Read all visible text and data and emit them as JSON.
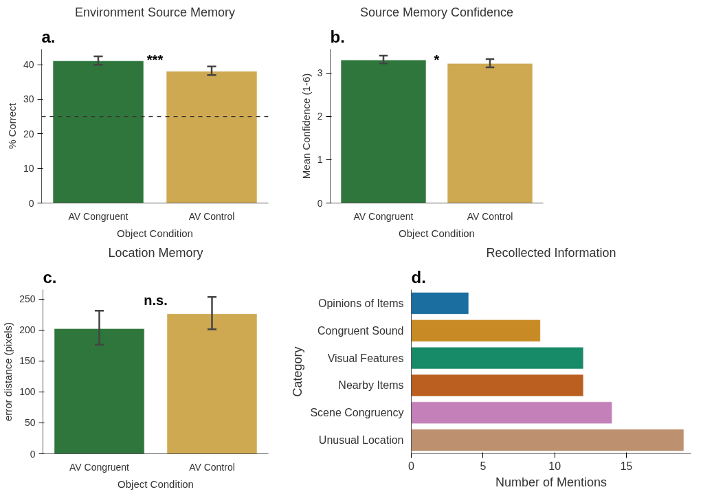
{
  "chart_data": [
    {
      "type": "bar",
      "title": "Environment Source Memory",
      "xlabel": "Object Condition",
      "ylabel": "% Correct",
      "categories": [
        "AV Congruent",
        "AV Control"
      ],
      "values": [
        41.1,
        38.1
      ],
      "colors": [
        "#2e763b",
        "#cfa952"
      ],
      "errors": [
        [
          40.0,
          42.4
        ],
        [
          37.0,
          39.5
        ]
      ],
      "ylim": [
        0,
        44.5
      ],
      "yticks": [
        0,
        10,
        20,
        30,
        40
      ],
      "grid": false,
      "ref_lines": [
        {
          "axis": "y",
          "value": 25,
          "line_style": "dashed",
          "color": "#333333"
        }
      ],
      "annotations": [
        "a.",
        "***"
      ]
    },
    {
      "type": "bar",
      "title": "Source Memory Confidence",
      "xlabel": "Object Condition",
      "ylabel": "Mean Confidence (1-6)",
      "categories": [
        "AV Congruent",
        "AV Control"
      ],
      "values": [
        3.3,
        3.22
      ],
      "colors": [
        "#2e763b",
        "#cfa952"
      ],
      "errors": [
        [
          3.22,
          3.4
        ],
        [
          3.13,
          3.32
        ]
      ],
      "ylim": [
        0,
        3.55
      ],
      "yticks": [
        0,
        1,
        2,
        3
      ],
      "grid": false,
      "annotations": [
        "b.",
        "*"
      ]
    },
    {
      "type": "bar",
      "title": "Location Memory",
      "xlabel": "Object Condition",
      "ylabel": "error distance (pixels)",
      "categories": [
        "AV Congruent",
        "AV Control"
      ],
      "values": [
        202,
        226
      ],
      "colors": [
        "#2e763b",
        "#cfa952"
      ],
      "errors": [
        [
          176,
          231
        ],
        [
          201,
          253
        ]
      ],
      "ylim": [
        0,
        265
      ],
      "yticks": [
        0,
        50,
        100,
        150,
        200,
        250
      ],
      "grid": false,
      "annotations": [
        "c.",
        "n.s."
      ]
    },
    {
      "type": "bar",
      "orientation": "horizontal",
      "title": "Recollected Information",
      "xlabel": "Number of Mentions",
      "ylabel": "Category",
      "categories": [
        "Opinions of Items",
        "Congruent Sound",
        "Visual Features",
        "Nearby Items",
        "Scene Congruency",
        "Unusual Location"
      ],
      "values": [
        4,
        9,
        12,
        12,
        14,
        19
      ],
      "colors": [
        "#1a6ea0",
        "#c78a25",
        "#178a68",
        "#ba5f1f",
        "#c480b8",
        "#bd916f"
      ],
      "xlim": [
        0,
        19.5
      ],
      "xticks": [
        0,
        5,
        10,
        15
      ],
      "grid": false,
      "annotations": [
        "d."
      ]
    }
  ]
}
